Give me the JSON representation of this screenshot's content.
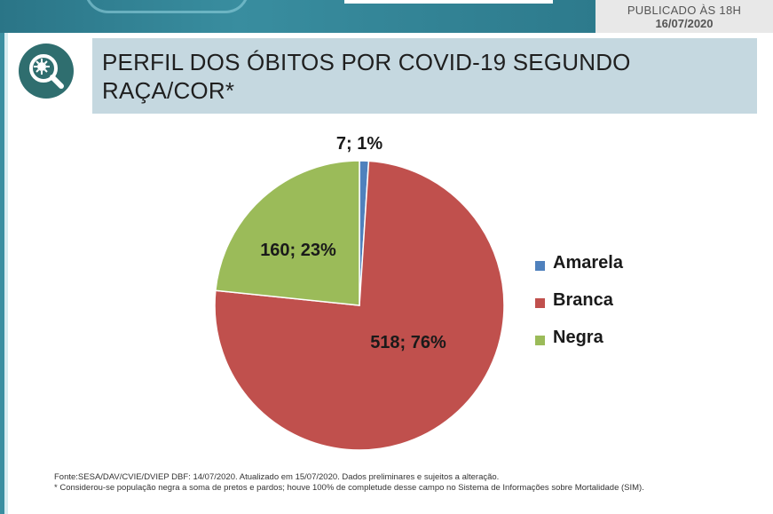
{
  "header": {
    "published_line1": "PUBLICADO ÀS 18H",
    "published_line2": "16/07/2020"
  },
  "title": "PERFIL DOS ÓBITOS POR COVID-19 SEGUNDO RAÇA/COR*",
  "logo_icon": "virus-magnifier-icon",
  "chart_data": {
    "type": "pie",
    "title": "",
    "slices": [
      {
        "name": "Amarela",
        "value": 7,
        "percent": 1,
        "label": "7; 1%",
        "color": "#4f81bd"
      },
      {
        "name": "Branca",
        "value": 518,
        "percent": 76,
        "label": "518; 76%",
        "color": "#c0504d"
      },
      {
        "name": "Negra",
        "value": 160,
        "percent": 23,
        "label": "160; 23%",
        "color": "#9bbb59"
      }
    ],
    "legend_position": "right"
  },
  "footnote": {
    "line1": "Fonte:SESA/DAV/CVIE/DVIEP DBF: 14/07/2020. Atualizado em 15/07/2020. Dados preliminares e sujeitos a alteração.",
    "line2": "* Considerou-se população negra a soma de pretos e pardos; houve 100% de completude desse campo no Sistema de Informações sobre Mortalidade (SIM)."
  },
  "colors": {
    "banner": "#2e7d8f",
    "title_box": "#c5d8e0",
    "logo": "#2f6e6f"
  }
}
